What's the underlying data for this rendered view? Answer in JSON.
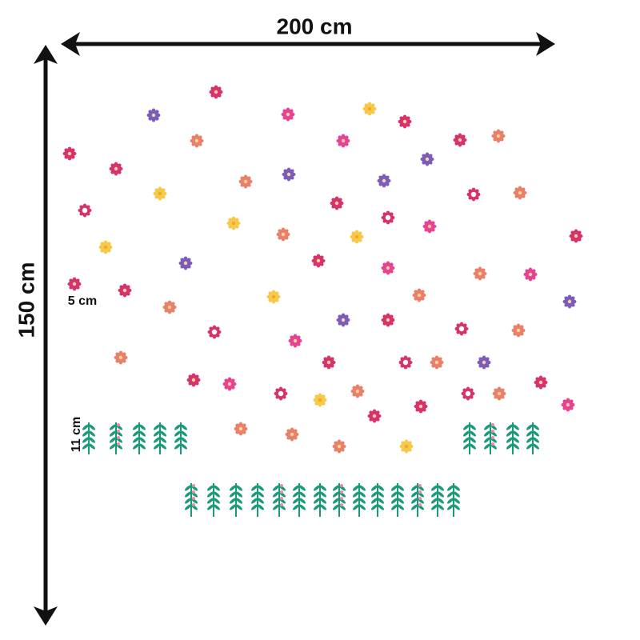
{
  "dimensions": {
    "width": "200 cm",
    "height": "150 cm",
    "flower_size": "5 cm",
    "stem_height": "11 cm"
  }
}
